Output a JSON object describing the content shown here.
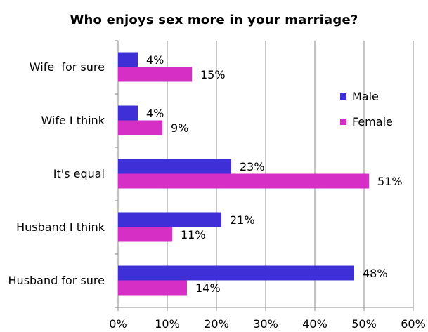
{
  "chart_data": {
    "type": "bar",
    "orientation": "horizontal",
    "title": "Who enjoys sex more in your marriage?",
    "xlabel": "",
    "ylabel": "",
    "categories": [
      "Wife  for sure",
      "Wife I think",
      "It's equal",
      "Husband I think",
      "Husband for sure"
    ],
    "series": [
      {
        "name": "Male",
        "color": "#3f2fd6",
        "values": [
          4,
          4,
          23,
          21,
          48
        ],
        "labels": [
          "4%",
          "4%",
          "23%",
          "21%",
          "48%"
        ]
      },
      {
        "name": "Female",
        "color": "#d62fc5",
        "values": [
          15,
          9,
          51,
          11,
          14
        ],
        "labels": [
          "15%",
          "9%",
          "51%",
          "11%",
          "14%"
        ]
      }
    ],
    "xlim": [
      0,
      60
    ],
    "xticks": [
      0,
      10,
      20,
      30,
      40,
      50,
      60
    ],
    "xtick_labels": [
      "0%",
      "10%",
      "20%",
      "30%",
      "40%",
      "50%",
      "60%"
    ],
    "grid": "vertical",
    "legend_position": "right"
  }
}
